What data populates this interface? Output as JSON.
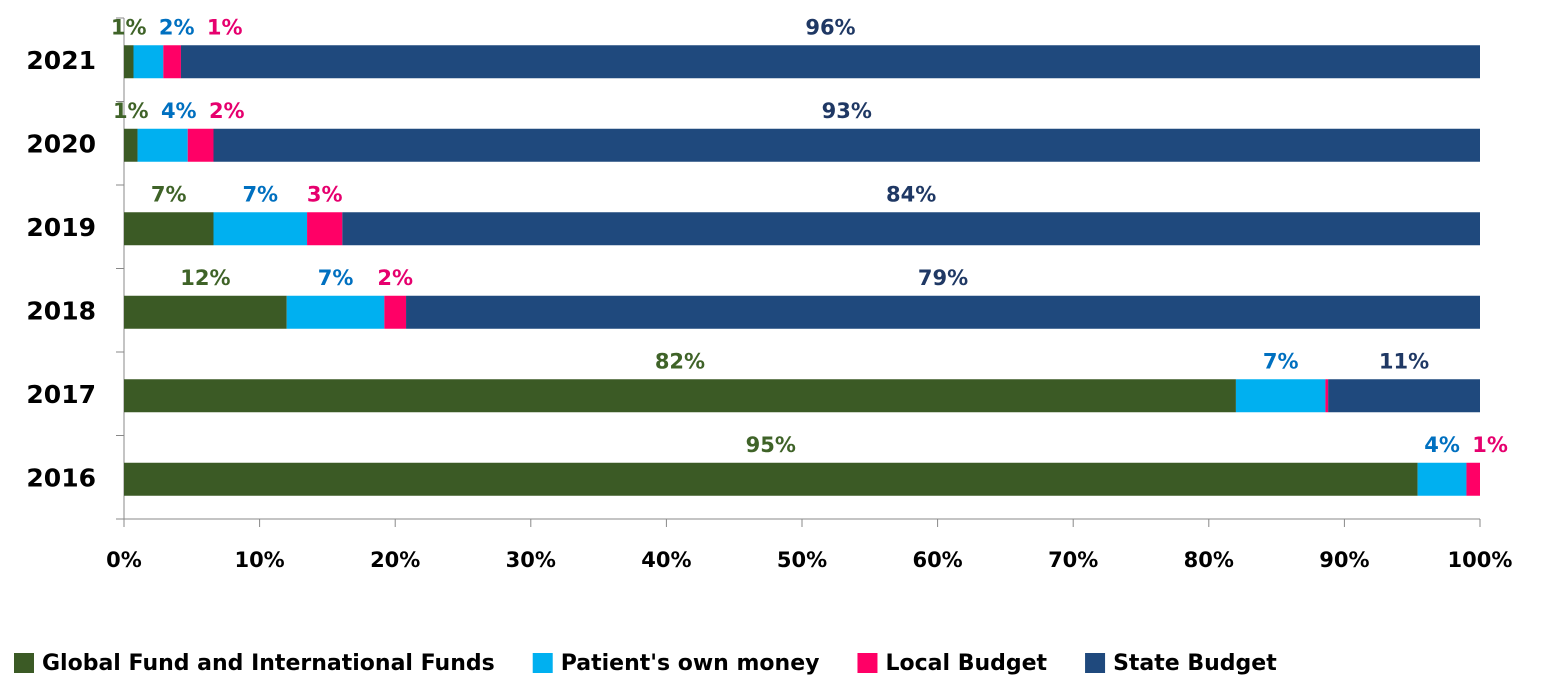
{
  "chart_data": {
    "type": "stacked-bar-horizontal",
    "categories": [
      "2021",
      "2020",
      "2019",
      "2018",
      "2017",
      "2016"
    ],
    "series": [
      {
        "name": "Global Fund and International Funds",
        "color": "#3b5a25",
        "label_color": "#3f6328",
        "values": [
          0.7,
          1.0,
          6.6,
          12.0,
          82.0,
          95.4
        ],
        "value_labels": [
          "1%",
          "1%",
          "7%",
          "12%",
          "82%",
          "95%"
        ]
      },
      {
        "name": "Patient's own money",
        "color": "#00b0f0",
        "label_color": "#0070c0",
        "values": [
          2.2,
          3.7,
          6.9,
          7.2,
          6.6,
          3.6
        ],
        "value_labels": [
          "2%",
          "4%",
          "7%",
          "7%",
          "7%",
          "4%"
        ]
      },
      {
        "name": "Local Budget",
        "color": "#ff0066",
        "label_color": "#e6006e",
        "values": [
          1.3,
          1.9,
          2.6,
          1.6,
          0.2,
          1.0
        ],
        "value_labels": [
          "1%",
          "2%",
          "3%",
          "2%",
          null,
          "1%"
        ]
      },
      {
        "name": "State Budget",
        "color": "#1f497d",
        "label_color": "#1f3864",
        "values": [
          95.8,
          93.4,
          83.9,
          79.2,
          11.2,
          0
        ],
        "value_labels": [
          "96%",
          "93%",
          "84%",
          "79%",
          "11%",
          null
        ]
      }
    ],
    "xlim": [
      0,
      100
    ],
    "xticks": [
      {
        "value": 0,
        "label": "0%"
      },
      {
        "value": 10,
        "label": "10%"
      },
      {
        "value": 20,
        "label": "20%"
      },
      {
        "value": 30,
        "label": "30%"
      },
      {
        "value": 40,
        "label": "40%"
      },
      {
        "value": 50,
        "label": "50%"
      },
      {
        "value": 60,
        "label": "60%"
      },
      {
        "value": 70,
        "label": "70%"
      },
      {
        "value": 80,
        "label": "80%"
      },
      {
        "value": 90,
        "label": "90%"
      },
      {
        "value": 100,
        "label": "100%"
      }
    ],
    "legend": "bottom"
  }
}
